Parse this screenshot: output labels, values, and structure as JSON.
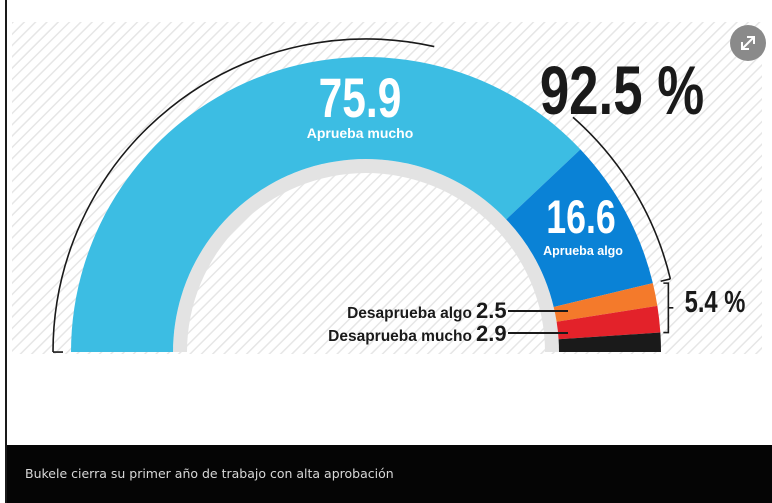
{
  "caption": "Bukele cierra su primer año de trabajo con alta aprobación",
  "expand_icon": "expand-icon",
  "chart_data": {
    "type": "pie",
    "subtype": "semicircle-donut",
    "segments": [
      {
        "label": "Aprueba mucho",
        "value": 75.9,
        "value_text": "75.9",
        "color": "#3cbde3"
      },
      {
        "label": "Aprueba algo",
        "value": 16.6,
        "value_text": "16.6",
        "color": "#0a82d6"
      },
      {
        "label": "Desaprueba algo",
        "value": 2.5,
        "value_text": "2.5",
        "color": "#f47a2b"
      },
      {
        "label": "Desaprueba mucho",
        "value": 2.9,
        "value_text": "2.9",
        "color": "#e3222a"
      },
      {
        "label": "",
        "value": 2.1,
        "value_text": "",
        "color": "#1a1a1a"
      }
    ],
    "groups": [
      {
        "label": "92.5 %",
        "members": [
          "Aprueba mucho",
          "Aprueba algo"
        ]
      },
      {
        "label": "5.4 %",
        "members": [
          "Desaprueba algo",
          "Desaprueba mucho"
        ]
      }
    ]
  }
}
